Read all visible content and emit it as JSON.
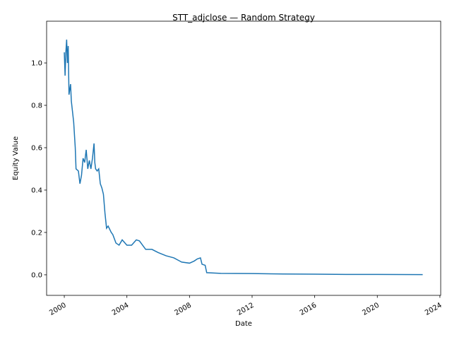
{
  "chart_data": {
    "type": "line",
    "title": "STT_adjclose — Random Strategy",
    "xlabel": "Date",
    "ylabel": "Equity Value",
    "x": [
      2000.0,
      2000.05,
      2000.1,
      2000.15,
      2000.2,
      2000.25,
      2000.3,
      2000.4,
      2000.45,
      2000.6,
      2000.7,
      2000.75,
      2000.9,
      2001.0,
      2001.1,
      2001.2,
      2001.3,
      2001.4,
      2001.5,
      2001.6,
      2001.7,
      2001.8,
      2001.9,
      2001.95,
      2002.0,
      2002.1,
      2002.2,
      2002.3,
      2002.4,
      2002.5,
      2002.6,
      2002.7,
      2002.8,
      2003.0,
      2003.1,
      2003.3,
      2003.5,
      2003.7,
      2004.0,
      2004.3,
      2004.6,
      2004.8,
      2005.0,
      2005.2,
      2005.6,
      2006.0,
      2006.5,
      2007.0,
      2007.5,
      2008.0,
      2008.3,
      2008.5,
      2008.7,
      2008.8,
      2009.0,
      2009.1,
      2010.0,
      2012.0,
      2014.0,
      2016.0,
      2018.0,
      2020.0,
      2022.9
    ],
    "series": [
      {
        "name": "Equity",
        "color": "#1f77b4",
        "values": [
          1.05,
          0.94,
          1.05,
          1.11,
          1.0,
          1.08,
          0.85,
          0.9,
          0.82,
          0.72,
          0.6,
          0.5,
          0.49,
          0.43,
          0.47,
          0.55,
          0.53,
          0.59,
          0.5,
          0.54,
          0.5,
          0.55,
          0.62,
          0.53,
          0.5,
          0.49,
          0.5,
          0.43,
          0.41,
          0.38,
          0.29,
          0.22,
          0.23,
          0.2,
          0.19,
          0.15,
          0.14,
          0.165,
          0.14,
          0.14,
          0.165,
          0.16,
          0.14,
          0.12,
          0.12,
          0.105,
          0.09,
          0.08,
          0.06,
          0.055,
          0.065,
          0.075,
          0.08,
          0.05,
          0.045,
          0.01,
          0.007,
          0.006,
          0.004,
          0.003,
          0.002,
          0.002,
          0.001
        ]
      }
    ],
    "xlim": [
      1998.87,
      2024.05
    ],
    "xticks": [
      2000,
      2004,
      2008,
      2012,
      2016,
      2020,
      2024
    ],
    "ylim": [
      -0.097,
      1.197
    ],
    "yticks": [
      {
        "value": 0,
        "label": "0.0"
      },
      0.2,
      0.4,
      0.6,
      0.8,
      {
        "value": 1,
        "label": "1.0"
      }
    ],
    "grid": false
  }
}
